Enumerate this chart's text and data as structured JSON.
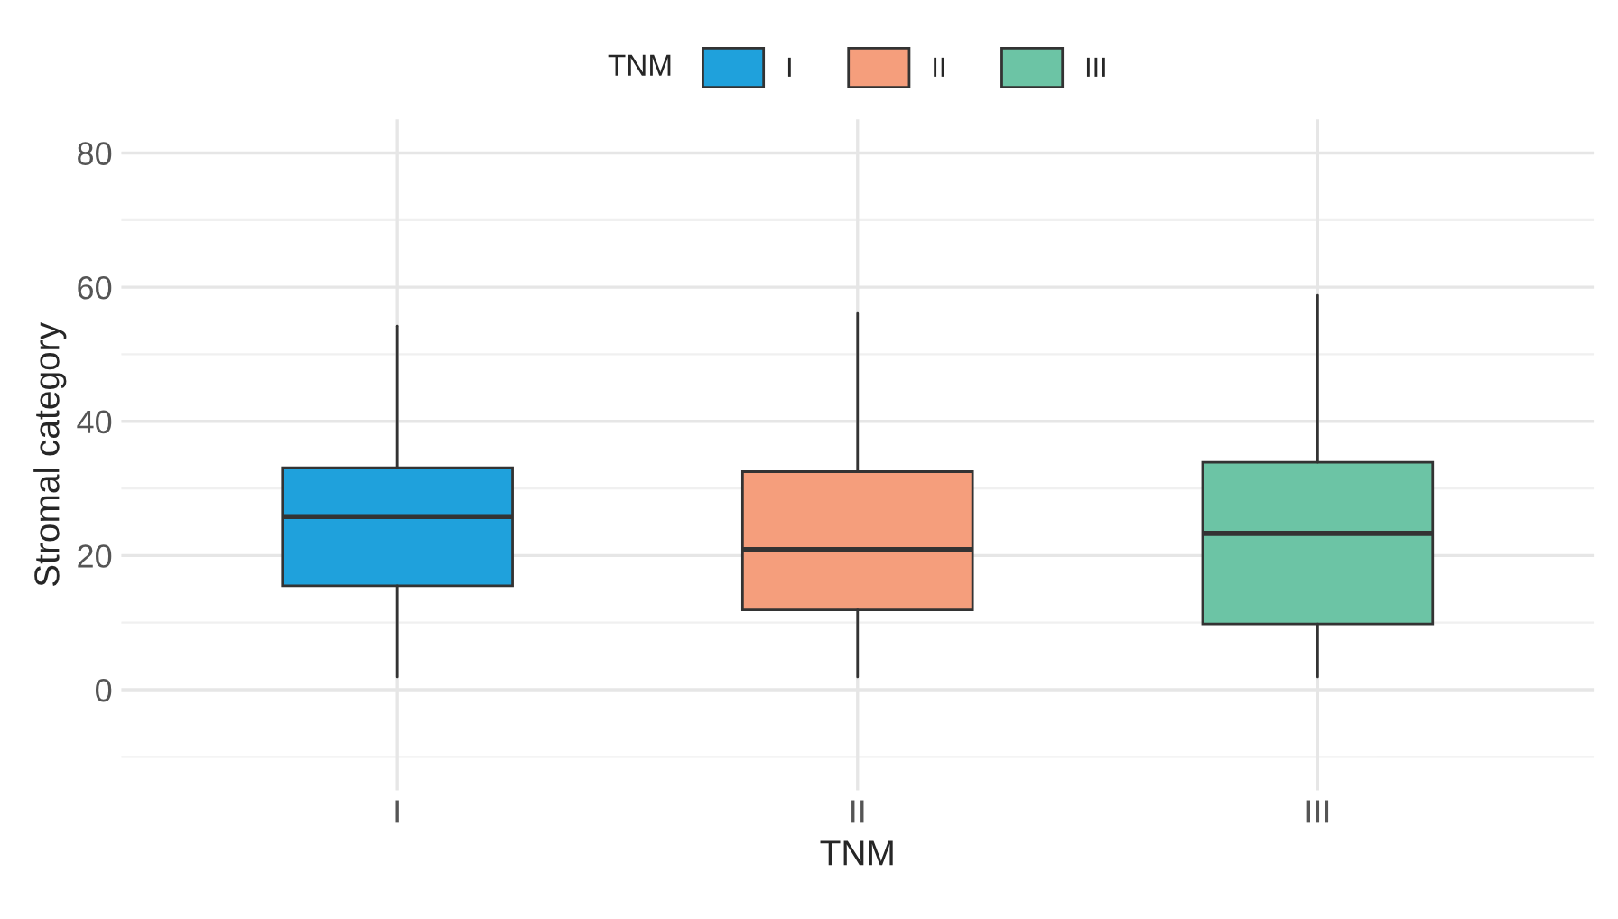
{
  "chart_data": {
    "type": "box",
    "xlabel": "TNM",
    "ylabel": "Stromal category",
    "legend_title": "TNM",
    "legend": "top",
    "grid": true,
    "categories": [
      "I",
      "II",
      "III"
    ],
    "series": [
      {
        "name": "I",
        "color": "#1fa1dc",
        "boxes": [
          {
            "low": 1.9,
            "q1": 15.5,
            "median": 25.8,
            "q3": 33.1,
            "high": 54.2
          },
          null,
          null
        ]
      },
      {
        "name": "II",
        "color": "#f59e7c",
        "boxes": [
          null,
          {
            "low": 1.9,
            "q1": 11.9,
            "median": 20.9,
            "q3": 32.5,
            "high": 56.1
          },
          null
        ]
      },
      {
        "name": "III",
        "color": "#6cc4a5",
        "boxes": [
          null,
          null,
          {
            "low": 1.9,
            "q1": 9.8,
            "median": 23.3,
            "q3": 33.9,
            "high": 58.8
          }
        ]
      }
    ],
    "ylim": [
      -15,
      85
    ],
    "yticks": [
      0,
      20,
      40,
      60,
      80
    ]
  }
}
